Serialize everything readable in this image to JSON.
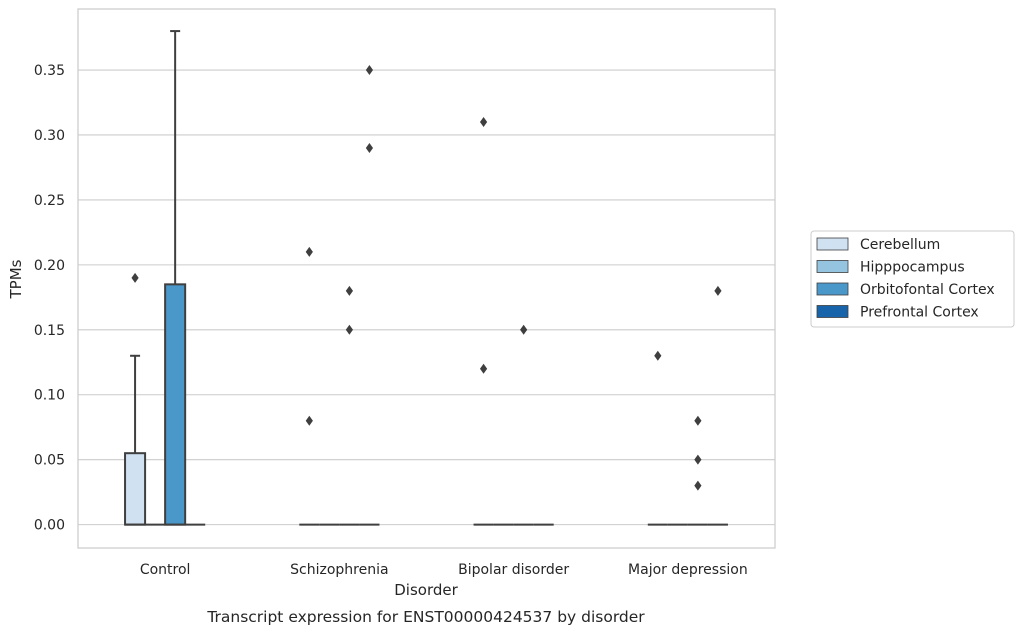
{
  "chart_data": {
    "type": "box",
    "xlabel": "Disorder",
    "ylabel": "TPMs",
    "caption": "Transcript expression for ENST00000424537 by disorder",
    "categories": [
      "Control",
      "Schizophrenia",
      "Bipolar disorder",
      "Major depression"
    ],
    "ylim": [
      -0.018,
      0.397
    ],
    "yticks": [
      0.0,
      0.05,
      0.1,
      0.15,
      0.2,
      0.25,
      0.3,
      0.35
    ],
    "ytick_labels": [
      "0.00",
      "0.05",
      "0.10",
      "0.15",
      "0.20",
      "0.25",
      "0.30",
      "0.35"
    ],
    "grid": true,
    "legend_position": "right",
    "series": [
      {
        "name": "Cerebellum",
        "color": "#d0e1f2",
        "boxes": [
          {
            "q1": 0.0,
            "median": 0.0,
            "q3": 0.055,
            "whislo": 0.0,
            "whishi": 0.13,
            "fliers": [
              0.19
            ]
          },
          {
            "q1": 0.0,
            "median": 0.0,
            "q3": 0.0,
            "whislo": 0.0,
            "whishi": 0.0,
            "fliers": [
              0.08,
              0.21
            ]
          },
          {
            "q1": 0.0,
            "median": 0.0,
            "q3": 0.0,
            "whislo": 0.0,
            "whishi": 0.0,
            "fliers": [
              0.12,
              0.31
            ]
          },
          {
            "q1": 0.0,
            "median": 0.0,
            "q3": 0.0,
            "whislo": 0.0,
            "whishi": 0.0,
            "fliers": [
              0.13
            ]
          }
        ]
      },
      {
        "name": "Hipppocampus",
        "color": "#94c4df",
        "boxes": [
          {
            "q1": 0.0,
            "median": 0.0,
            "q3": 0.0,
            "whislo": 0.0,
            "whishi": 0.0,
            "fliers": []
          },
          {
            "q1": 0.0,
            "median": 0.0,
            "q3": 0.0,
            "whislo": 0.0,
            "whishi": 0.0,
            "fliers": []
          },
          {
            "q1": 0.0,
            "median": 0.0,
            "q3": 0.0,
            "whislo": 0.0,
            "whishi": 0.0,
            "fliers": []
          },
          {
            "q1": 0.0,
            "median": 0.0,
            "q3": 0.0,
            "whislo": 0.0,
            "whishi": 0.0,
            "fliers": []
          }
        ]
      },
      {
        "name": "Orbitofontal Cortex",
        "color": "#4a98c9",
        "boxes": [
          {
            "q1": 0.0,
            "median": 0.0,
            "q3": 0.185,
            "whislo": 0.0,
            "whishi": 0.38,
            "fliers": []
          },
          {
            "q1": 0.0,
            "median": 0.0,
            "q3": 0.0,
            "whislo": 0.0,
            "whishi": 0.0,
            "fliers": [
              0.15,
              0.18
            ]
          },
          {
            "q1": 0.0,
            "median": 0.0,
            "q3": 0.0,
            "whislo": 0.0,
            "whishi": 0.0,
            "fliers": [
              0.15
            ]
          },
          {
            "q1": 0.0,
            "median": 0.0,
            "q3": 0.0,
            "whislo": 0.0,
            "whishi": 0.0,
            "fliers": [
              0.03,
              0.05,
              0.08
            ]
          }
        ]
      },
      {
        "name": "Prefrontal Cortex",
        "color": "#1764ab",
        "boxes": [
          {
            "q1": 0.0,
            "median": 0.0,
            "q3": 0.0,
            "whislo": 0.0,
            "whishi": 0.0,
            "fliers": []
          },
          {
            "q1": 0.0,
            "median": 0.0,
            "q3": 0.0,
            "whislo": 0.0,
            "whishi": 0.0,
            "fliers": [
              0.29,
              0.35
            ]
          },
          {
            "q1": 0.0,
            "median": 0.0,
            "q3": 0.0,
            "whislo": 0.0,
            "whishi": 0.0,
            "fliers": []
          },
          {
            "q1": 0.0,
            "median": 0.0,
            "q3": 0.0,
            "whislo": 0.0,
            "whishi": 0.0,
            "fliers": [
              0.18
            ]
          }
        ]
      }
    ]
  }
}
